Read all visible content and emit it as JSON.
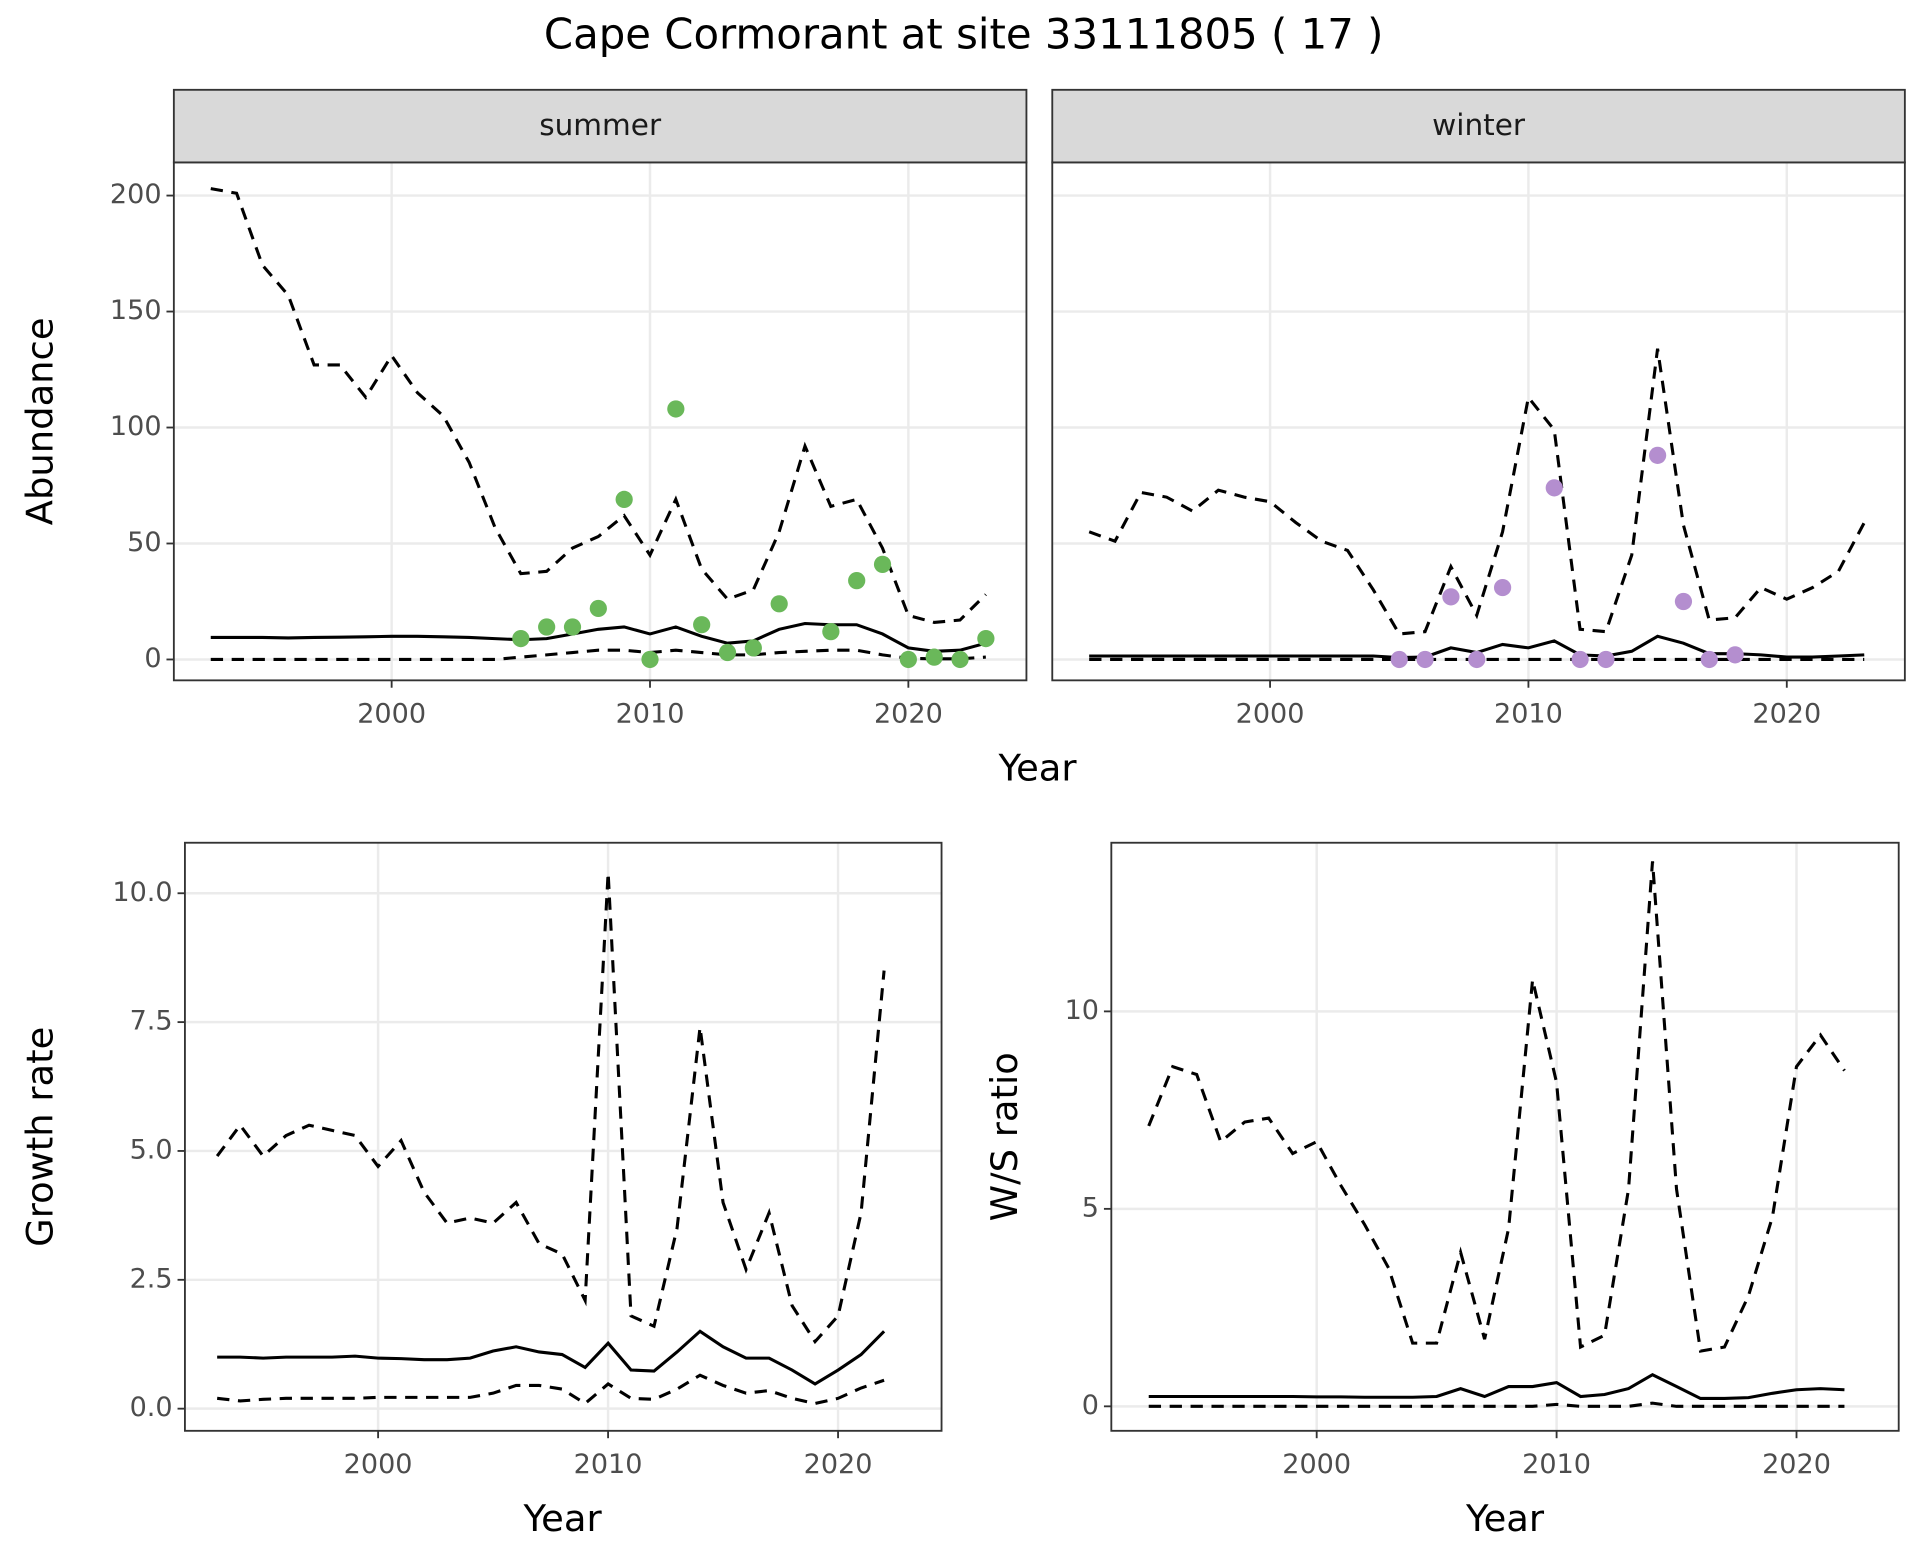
{
  "title": "Cape Cormorant at site 33111805 ( 17 )",
  "chart_data": [
    {
      "type": "line",
      "facet": "summer",
      "ylabel": "Abundance",
      "xlabel": "Year",
      "x": [
        1993,
        1994,
        1995,
        1996,
        1997,
        1998,
        1999,
        2000,
        2001,
        2002,
        2003,
        2004,
        2005,
        2006,
        2007,
        2008,
        2009,
        2010,
        2011,
        2012,
        2013,
        2014,
        2015,
        2016,
        2017,
        2018,
        2019,
        2020,
        2021,
        2022,
        2023
      ],
      "series": [
        {
          "color": "#000000",
          "dash": true,
          "values": [
            203,
            201,
            170,
            157,
            127,
            127,
            113,
            131,
            115,
            105,
            85,
            57,
            37,
            38,
            48,
            53,
            62,
            45,
            69,
            39,
            26,
            30,
            55,
            92,
            66,
            69,
            48,
            19,
            16,
            17,
            28
          ]
        },
        {
          "color": "#000000",
          "dash": false,
          "values": [
            9.5,
            9.5,
            9.5,
            9.3,
            9.5,
            9.6,
            9.8,
            10,
            10,
            9.8,
            9.5,
            9,
            8.5,
            9,
            11,
            13,
            14,
            11,
            14,
            10,
            7,
            8,
            13,
            15.5,
            15,
            15,
            11,
            5,
            3.5,
            4,
            7
          ]
        },
        {
          "color": "#000000",
          "dash": true,
          "values": [
            0,
            0,
            0,
            0,
            0,
            0,
            0,
            0,
            0,
            0,
            0,
            0,
            1,
            2,
            3,
            4,
            4,
            3,
            4,
            3,
            2,
            2,
            3,
            3.5,
            4,
            4,
            2,
            0.5,
            0.3,
            0.3,
            1
          ]
        }
      ],
      "points": {
        "color": "#6ab85a",
        "x": [
          2005,
          2006,
          2007,
          2008,
          2009,
          2010,
          2011,
          2012,
          2013,
          2014,
          2015,
          2017,
          2018,
          2019,
          2020,
          2021,
          2022,
          2023
        ],
        "values": [
          9,
          14,
          14,
          22,
          69,
          0,
          108,
          15,
          3,
          5,
          24,
          12,
          34,
          41,
          0,
          1,
          0,
          9
        ]
      },
      "xlim": [
        1991.57,
        2024.57
      ],
      "xticks": [
        2000,
        2010,
        2020
      ],
      "ylim": [
        -9,
        214.3
      ],
      "yticks": [
        0,
        50,
        100,
        150,
        200
      ],
      "grid": true
    },
    {
      "type": "line",
      "facet": "winter",
      "x": [
        1993,
        1994,
        1995,
        1996,
        1997,
        1998,
        1999,
        2000,
        2001,
        2002,
        2003,
        2004,
        2005,
        2006,
        2007,
        2008,
        2009,
        2010,
        2011,
        2012,
        2013,
        2014,
        2015,
        2016,
        2017,
        2018,
        2019,
        2020,
        2021,
        2022,
        2023
      ],
      "series": [
        {
          "color": "#000000",
          "dash": true,
          "values": [
            55,
            51,
            72,
            70,
            64,
            73,
            70,
            68,
            59,
            51,
            47,
            30,
            11,
            12,
            40,
            19,
            55,
            113,
            99,
            13,
            12,
            45,
            134,
            58,
            17,
            18,
            31,
            26,
            31,
            38,
            59
          ]
        },
        {
          "color": "#000000",
          "dash": false,
          "values": [
            1.5,
            1.5,
            1.5,
            1.5,
            1.5,
            1.5,
            1.5,
            1.5,
            1.5,
            1.5,
            1.5,
            1.5,
            0.8,
            1,
            5,
            3,
            6.5,
            5,
            8,
            2,
            1.5,
            3.5,
            10,
            7,
            2.5,
            2.5,
            2,
            1,
            1,
            1.5,
            2
          ]
        },
        {
          "color": "#000000",
          "dash": true,
          "values": [
            0,
            0,
            0,
            0,
            0,
            0,
            0,
            0,
            0,
            0,
            0,
            0,
            0,
            0,
            0,
            0,
            0,
            0,
            0,
            0,
            0,
            0,
            0,
            0,
            0,
            0,
            0,
            0,
            0,
            0,
            0
          ]
        }
      ],
      "points": {
        "color": "#b48ecf",
        "x": [
          2005,
          2006,
          2007,
          2008,
          2009,
          2011,
          2012,
          2013,
          2015,
          2016,
          2017,
          2018
        ],
        "values": [
          0,
          0,
          27,
          0,
          31,
          74,
          0,
          0,
          88,
          25,
          0,
          2
        ]
      },
      "xlim": [
        1991.57,
        2024.57
      ],
      "xticks": [
        2000,
        2010,
        2020
      ],
      "ylim": [
        -9,
        214.3
      ],
      "yticks": [
        0,
        50,
        100,
        150,
        200
      ],
      "grid": true
    },
    {
      "type": "line",
      "ylabel": "Growth rate",
      "xlabel": "Year",
      "x": [
        1993,
        1994,
        1995,
        1996,
        1997,
        1998,
        1999,
        2000,
        2001,
        2002,
        2003,
        2004,
        2005,
        2006,
        2007,
        2008,
        2009,
        2010,
        2011,
        2012,
        2013,
        2014,
        2015,
        2016,
        2017,
        2018,
        2019,
        2020,
        2021,
        2022
      ],
      "series": [
        {
          "color": "#000000",
          "dash": true,
          "values": [
            4.9,
            5.5,
            4.9,
            5.3,
            5.5,
            5.4,
            5.3,
            4.7,
            5.2,
            4.2,
            3.6,
            3.7,
            3.6,
            4.0,
            3.2,
            3.0,
            2.1,
            10.4,
            1.8,
            1.6,
            3.5,
            7.4,
            4.0,
            2.7,
            3.8,
            2.0,
            1.3,
            1.8,
            3.8,
            8.5
          ]
        },
        {
          "color": "#000000",
          "dash": false,
          "values": [
            1.0,
            1.0,
            0.98,
            1.0,
            1.0,
            1.0,
            1.02,
            0.98,
            0.97,
            0.95,
            0.95,
            0.98,
            1.12,
            1.2,
            1.1,
            1.05,
            0.8,
            1.27,
            0.75,
            0.73,
            1.1,
            1.5,
            1.2,
            0.98,
            0.98,
            0.75,
            0.48,
            0.75,
            1.05,
            1.5
          ]
        },
        {
          "color": "#000000",
          "dash": true,
          "values": [
            0.2,
            0.15,
            0.18,
            0.2,
            0.2,
            0.2,
            0.2,
            0.22,
            0.22,
            0.22,
            0.22,
            0.22,
            0.3,
            0.45,
            0.45,
            0.38,
            0.1,
            0.48,
            0.2,
            0.18,
            0.38,
            0.65,
            0.45,
            0.3,
            0.35,
            0.2,
            0.1,
            0.2,
            0.4,
            0.55
          ]
        }
      ],
      "xlim": [
        1991.6,
        2024.5
      ],
      "xticks": [
        2000,
        2010,
        2020
      ],
      "ylim": [
        -0.43,
        10.98
      ],
      "yticks": [
        {
          "value": 0,
          "label": "0.0"
        },
        2.5,
        {
          "value": 5,
          "label": "5.0"
        },
        7.5,
        {
          "value": 10,
          "label": "10.0"
        }
      ],
      "grid": true
    },
    {
      "type": "line",
      "ylabel": "W/S ratio",
      "xlabel": "Year",
      "x": [
        1993,
        1994,
        1995,
        1996,
        1997,
        1998,
        1999,
        2000,
        2001,
        2002,
        2003,
        2004,
        2005,
        2006,
        2007,
        2008,
        2009,
        2010,
        2011,
        2012,
        2013,
        2014,
        2015,
        2016,
        2017,
        2018,
        2019,
        2020,
        2021,
        2022
      ],
      "series": [
        {
          "color": "#000000",
          "dash": true,
          "values": [
            7.1,
            8.6,
            8.4,
            6.7,
            7.2,
            7.3,
            6.4,
            6.7,
            5.6,
            4.6,
            3.5,
            1.6,
            1.6,
            3.9,
            1.7,
            4.5,
            10.8,
            8.2,
            1.5,
            1.8,
            5.5,
            13.8,
            5.5,
            1.4,
            1.5,
            2.8,
            4.8,
            8.6,
            9.4,
            8.5
          ]
        },
        {
          "color": "#000000",
          "dash": false,
          "values": [
            0.25,
            0.25,
            0.25,
            0.25,
            0.25,
            0.25,
            0.25,
            0.24,
            0.24,
            0.23,
            0.23,
            0.23,
            0.25,
            0.45,
            0.25,
            0.5,
            0.5,
            0.6,
            0.25,
            0.3,
            0.45,
            0.8,
            0.5,
            0.2,
            0.2,
            0.22,
            0.33,
            0.42,
            0.45,
            0.42
          ]
        },
        {
          "color": "#000000",
          "dash": true,
          "values": [
            0,
            0,
            0,
            0,
            0,
            0,
            0,
            0,
            0,
            0,
            0,
            0,
            0,
            0,
            0,
            0,
            0,
            0.05,
            0,
            0,
            0,
            0.08,
            0,
            0,
            0,
            0,
            0,
            0,
            0,
            0
          ]
        }
      ],
      "xlim": [
        1991.44,
        2024.26
      ],
      "xticks": [
        2000,
        2010,
        2020
      ],
      "ylim": [
        -0.62,
        14.27
      ],
      "yticks": [
        0,
        5,
        10
      ],
      "grid": true
    }
  ]
}
